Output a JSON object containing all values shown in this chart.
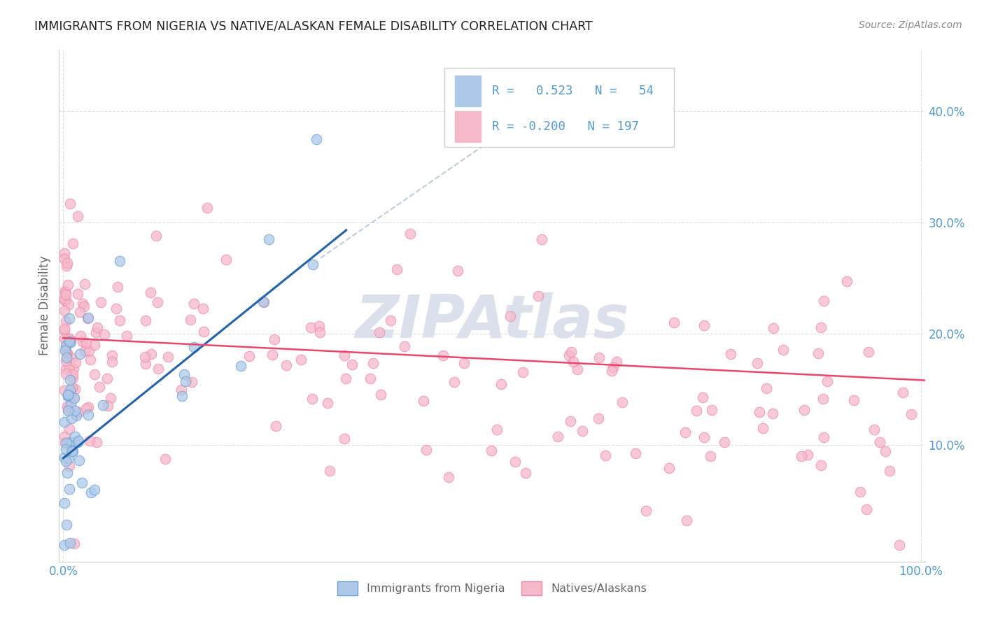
{
  "title": "IMMIGRANTS FROM NIGERIA VS NATIVE/ALASKAN FEMALE DISABILITY CORRELATION CHART",
  "source": "Source: ZipAtlas.com",
  "ylabel": "Female Disability",
  "y_ticks": [
    0.1,
    0.2,
    0.3,
    0.4
  ],
  "y_tick_labels": [
    "10.0%",
    "20.0%",
    "30.0%",
    "40.0%"
  ],
  "x_lim": [
    -0.005,
    1.005
  ],
  "y_lim": [
    -0.005,
    0.455
  ],
  "R_blue": "0.523",
  "N_blue": "54",
  "R_pink": "-0.200",
  "N_pink": "197",
  "legend_label_blue": "Immigrants from Nigeria",
  "legend_label_pink": "Natives/Alaskans",
  "blue_fill": "#aec9e8",
  "pink_fill": "#f5b8cb",
  "blue_edge": "#6b9fd4",
  "pink_edge": "#ef8baa",
  "blue_line_color": "#2563a8",
  "pink_line_color": "#e8476a",
  "dash_color": "#bbccdd",
  "title_color": "#222222",
  "axis_tick_color": "#5599cc",
  "grid_color": "#ddddee",
  "watermark_color": "#d8dde8",
  "ylabel_color": "#666666"
}
